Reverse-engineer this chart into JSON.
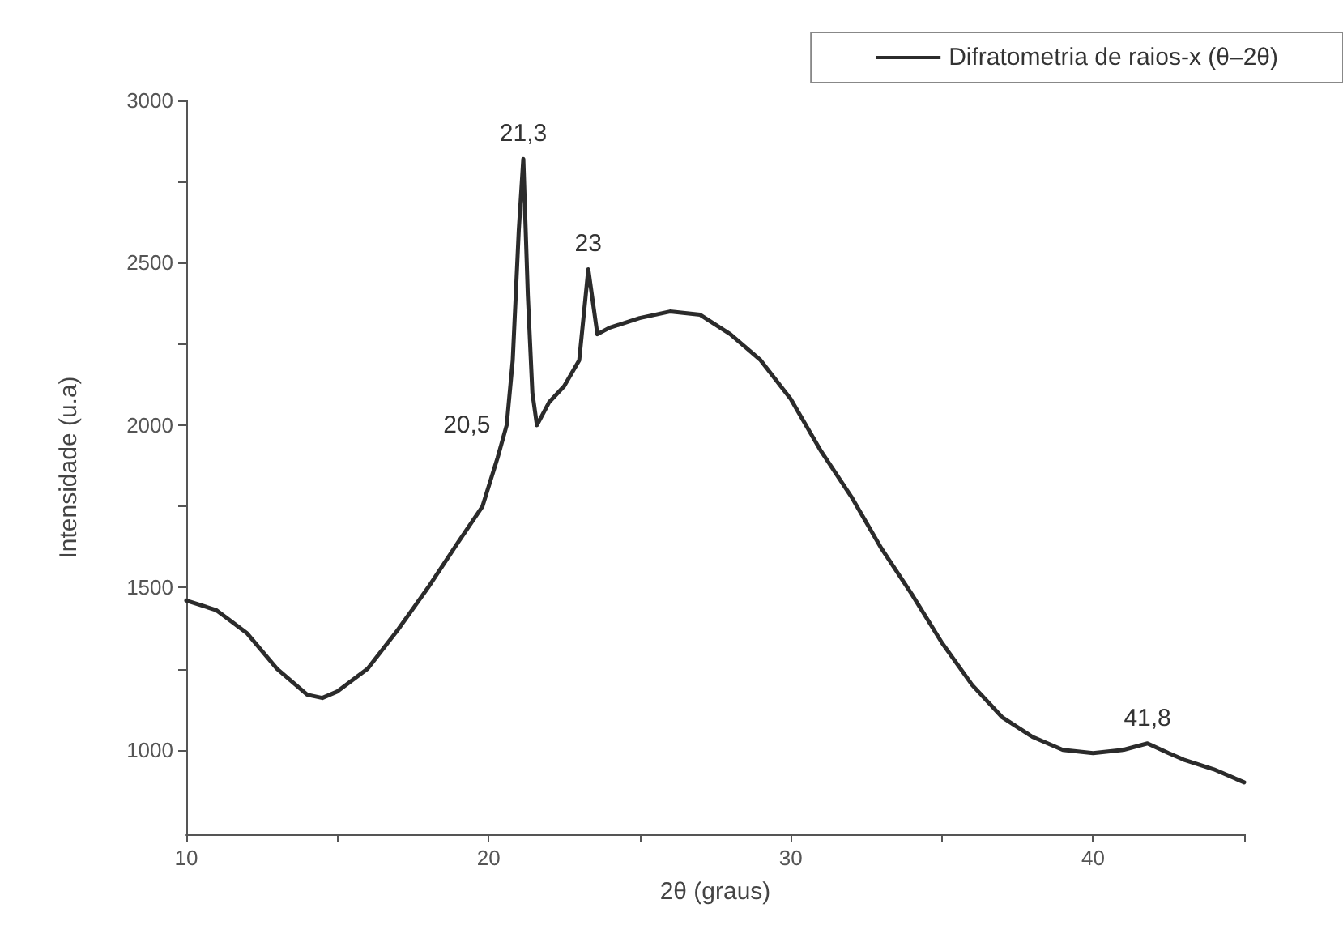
{
  "chart_data": {
    "type": "line",
    "xlabel": "2θ (graus)",
    "ylabel": "Intensidade (u.a)",
    "xlim": [
      10,
      45
    ],
    "xticks": [
      10,
      {
        "value": 15,
        "label": null
      },
      20,
      {
        "value": 25,
        "label": null
      },
      30,
      {
        "value": 35,
        "label": null
      },
      40,
      {
        "value": 45,
        "label": null
      }
    ],
    "ylim": [
      740,
      3000
    ],
    "yticks": [
      1000,
      {
        "value": 1250,
        "label": null
      },
      1500,
      {
        "value": 1750,
        "label": null
      },
      2000,
      {
        "value": 2250,
        "label": null
      },
      2500,
      {
        "value": 2750,
        "label": null
      },
      3000
    ],
    "series": [
      {
        "name": "Difratometria de raios-x (θ–2θ)",
        "color": "#2b2b2b",
        "x": [
          10,
          11,
          12,
          13,
          14,
          14.5,
          15,
          16,
          17,
          18,
          19,
          19.8,
          20.3,
          20.6,
          20.8,
          21.0,
          21.15,
          21.3,
          21.45,
          21.6,
          22,
          22.5,
          23,
          23.3,
          23.6,
          24,
          25,
          26,
          27,
          28,
          29,
          30,
          31,
          32,
          33,
          34,
          35,
          36,
          37,
          38,
          39,
          40,
          41,
          41.8,
          42.5,
          43,
          44,
          45
        ],
        "values": [
          1460,
          1430,
          1360,
          1250,
          1170,
          1160,
          1180,
          1250,
          1370,
          1500,
          1640,
          1750,
          1900,
          2000,
          2200,
          2600,
          2820,
          2400,
          2100,
          2000,
          2070,
          2120,
          2200,
          2480,
          2280,
          2300,
          2330,
          2350,
          2340,
          2280,
          2200,
          2080,
          1920,
          1780,
          1620,
          1480,
          1330,
          1200,
          1100,
          1040,
          1000,
          990,
          1000,
          1020,
          990,
          970,
          940,
          900
        ]
      }
    ],
    "annotations": [
      {
        "text": "20,5",
        "x": 20.6,
        "y": 2000
      },
      {
        "text": "21,3",
        "x": 21.15,
        "y": 2820
      },
      {
        "text": "23",
        "x": 23.3,
        "y": 2480
      },
      {
        "text": "41,8",
        "x": 41.8,
        "y": 1020
      }
    ],
    "grid": false,
    "legend": "top right",
    "marker": "none",
    "line_style": "solid"
  }
}
